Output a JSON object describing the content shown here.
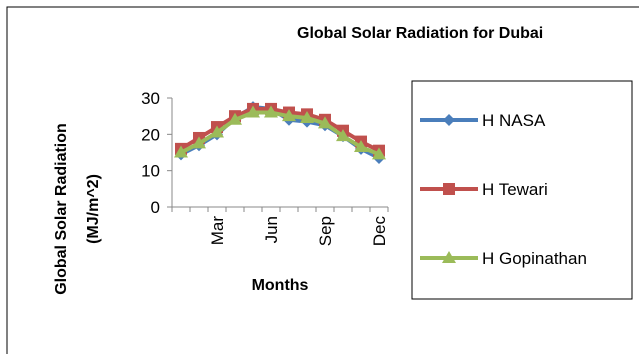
{
  "chart_data": {
    "type": "line",
    "title": "Global Solar Radiation for Dubai",
    "xlabel": "Months",
    "ylabel_line1": "Global Solar Radiation",
    "ylabel_line2": "(MJ/m^2)",
    "x": [
      1,
      2,
      3,
      4,
      5,
      6,
      7,
      8,
      9,
      10,
      11,
      12
    ],
    "x_tick_labels": [
      {
        "x": 3,
        "label": "Mar"
      },
      {
        "x": 6,
        "label": "Jun"
      },
      {
        "x": 9,
        "label": "Sep"
      },
      {
        "x": 12,
        "label": "Dec"
      }
    ],
    "ylim": [
      0,
      30
    ],
    "yticks": [
      0,
      10,
      20,
      30
    ],
    "grid": false,
    "legend_position": "right",
    "series": [
      {
        "name": "H NASA",
        "color": "#4A7EBB",
        "marker": "diamond",
        "values": [
          14.5,
          17.0,
          20.0,
          24.5,
          27.5,
          27.0,
          24.0,
          23.5,
          22.5,
          19.5,
          16.0,
          13.5
        ]
      },
      {
        "name": "H Tewari",
        "color": "#C0504D",
        "marker": "square",
        "values": [
          16.0,
          19.0,
          22.0,
          25.0,
          27.0,
          27.0,
          26.0,
          25.5,
          24.0,
          21.0,
          18.0,
          15.5
        ]
      },
      {
        "name": "H Gopinathan",
        "color": "#9BBB59",
        "marker": "triangle",
        "values": [
          15.0,
          17.5,
          20.5,
          24.0,
          26.0,
          26.0,
          25.0,
          24.5,
          23.0,
          19.5,
          16.5,
          14.5
        ]
      }
    ]
  }
}
